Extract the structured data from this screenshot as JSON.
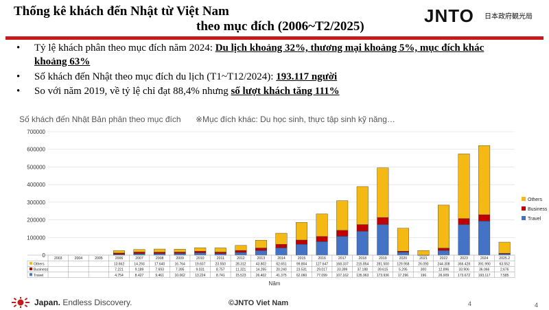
{
  "header": {
    "title_line1": "Thống kê khách đến Nhật từ Việt Nam",
    "title_line2": "theo mục đích (2006~T2/2025)",
    "logo_text": "JNTO",
    "org_jp": "日本政府観光局"
  },
  "bullets": [
    {
      "prefix": "Tỷ lệ khách phân theo mục đích năm 2024: ",
      "highlight": "Du lịch khoảng 32%, thương mại khoảng 5%, mục đích khác",
      "highlight_cont": "khoảng 63%"
    },
    {
      "prefix": "Số khách đến Nhật theo mục đích du lịch (T1~T12/2024): ",
      "highlight": "193.117 người"
    },
    {
      "prefix": "So với năm 2019, về tỷ lệ chỉ đạt 88,4% nhưng ",
      "highlight": "số lượt khách tăng 111%"
    }
  ],
  "bullet_symbol": "•",
  "chart_title": "Số khách đến Nhật Bản phân theo mục đích",
  "chart_note": "※Mục đích khác: Du học sinh, thực tập sinh kỹ năng…",
  "chart_data": {
    "type": "bar",
    "stacked": true,
    "categories": [
      "2003",
      "2004",
      "2005",
      "2006",
      "2007",
      "2008",
      "2009",
      "2010",
      "2011",
      "2012",
      "2013",
      "2014",
      "2015",
      "2016",
      "2017",
      "2018",
      "2019",
      "2020",
      "2021",
      "2022",
      "2023",
      "2024",
      "2025.2"
    ],
    "series": [
      {
        "name": "Travel",
        "color": "#4472c4",
        "values": [
          0,
          0,
          0,
          4754,
          8427,
          9461,
          10062,
          13224,
          8741,
          15523,
          26402,
          41375,
          62060,
          77099,
          107162,
          135963,
          173936,
          17296,
          196,
          26909,
          173672,
          193117,
          7585
        ],
        "labels": [
          "",
          "",
          "",
          "4.754",
          "8.427",
          "9.461",
          "10.062",
          "13.224",
          "8.741",
          "15.523",
          "26.402",
          "41.375",
          "62.060",
          "77.099",
          "107.162",
          "135.963",
          "173.936",
          "17.296",
          "196",
          "26.909",
          "173.672",
          "193.117",
          "7.585"
        ]
      },
      {
        "name": "Business",
        "color": "#c00000",
        "values": [
          0,
          0,
          0,
          7221,
          9189,
          7693,
          7395,
          9031,
          8757,
          11321,
          14265,
          20240,
          23531,
          29017,
          33399,
          37188,
          39615,
          5295,
          300,
          12896,
          33906,
          36066,
          2676
        ],
        "labels": [
          "",
          "",
          "",
          "7.221",
          "9.189",
          "7.693",
          "7.395",
          "9.031",
          "8.757",
          "11.321",
          "14.265",
          "20.240",
          "23.531",
          "29.017",
          "33.399",
          "37.188",
          "39.615",
          "5.295",
          "300",
          "12.896",
          "33.906",
          "36.066",
          "2.676"
        ]
      },
      {
        "name": "Others",
        "color": "#f5b914",
        "values": [
          0,
          0,
          0,
          13662,
          14293,
          17640,
          16764,
          19607,
          23550,
          28312,
          43802,
          62651,
          99804,
          127647,
          168337,
          215854,
          281500,
          129958,
          26090,
          244308,
          366428,
          391990,
          63552
        ],
        "labels": [
          "",
          "",
          "",
          "13.662",
          "14.293",
          "17.640",
          "16.764",
          "19.607",
          "23.550",
          "28.312",
          "43.802",
          "62.651",
          "99.804",
          "127.647",
          "168.337",
          "215.854",
          "281.500",
          "129.958",
          "26.090",
          "244.308",
          "366.428",
          "391.990",
          "63.552"
        ]
      }
    ],
    "ylim": [
      0,
      700000
    ],
    "yticks": [
      0,
      100000,
      200000,
      300000,
      400000,
      500000,
      600000,
      700000
    ],
    "ytick_labels": [
      "0",
      "100000",
      "200000",
      "300000",
      "400000",
      "500000",
      "600000",
      "700000"
    ],
    "xlabel": "Năm",
    "legend_order": [
      "Others",
      "Business",
      "Travel"
    ],
    "legend_position": "right",
    "grid": true
  },
  "footer": {
    "brand": "Japan.",
    "tagline": " Endless Discovery.",
    "copyright": "©JNTO Viet Nam",
    "page_inner": "4",
    "page_outer": "4"
  }
}
